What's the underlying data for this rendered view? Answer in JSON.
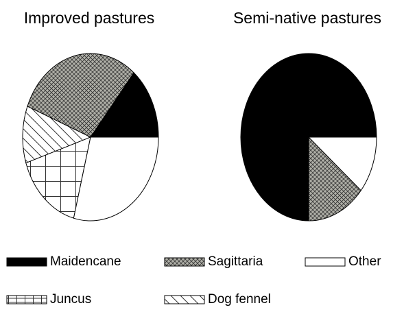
{
  "chart_data": [
    {
      "type": "pie",
      "title": "Improved pastures",
      "categories": [
        "Maidencane",
        "Sagittaria",
        "Dog fennel",
        "Juncus",
        "Other"
      ],
      "values": [
        14,
        30,
        11,
        16,
        29
      ]
    },
    {
      "type": "pie",
      "title": "Semi-native pastures",
      "categories": [
        "Maidencane",
        "Sagittaria",
        "Other"
      ],
      "values": [
        75,
        14,
        11
      ]
    }
  ]
}
